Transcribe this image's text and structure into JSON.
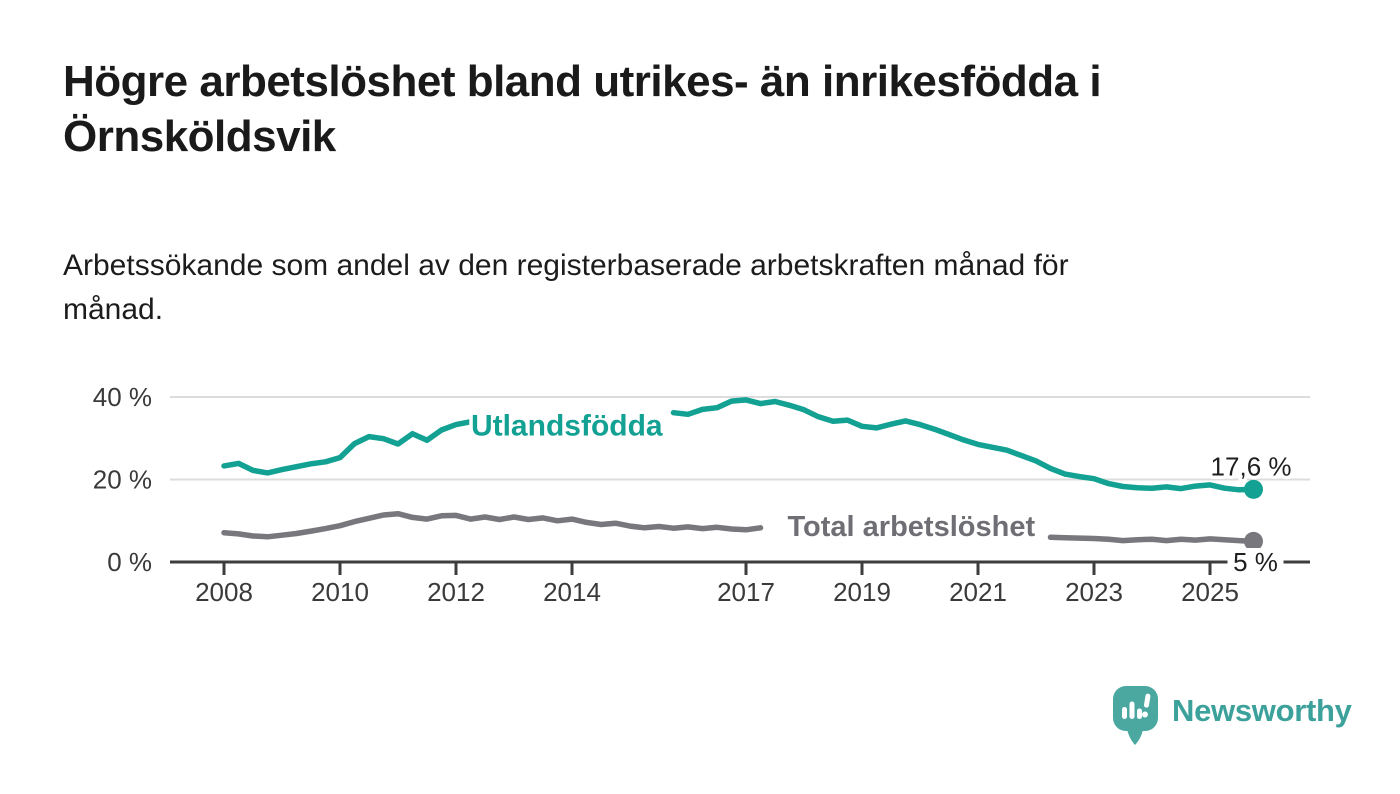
{
  "title": "Högre arbetslöshet bland utrikes- än inrikesfödda i\nÖrnsköldsvik",
  "subtitle": "Arbetssökande som andel av den registerbaserade arbetskraften månad för\nmånad.",
  "branding": {
    "name": "Newsworthy",
    "icon": "bar-chart-speech-bubble-icon",
    "wordmark_color": "#3BA19A",
    "icon_color": "#4BA8A1"
  },
  "colors": {
    "series_foreign_born": "#12A192",
    "series_total": "#77777D",
    "series_total_label": "#6E6E74",
    "axis": "#3D3D3D",
    "gridline": "#DCDCDC",
    "annotation_text": "#1F1F1F"
  },
  "chart_data": {
    "type": "line",
    "title": "Högre arbetslöshet bland utrikes- än inrikesfödda i Örnsköldsvik",
    "subtitle": "Arbetssökande som andel av den registerbaserade arbetskraften månad för månad.",
    "x_unit": "year (monthly share shown, sampled quarterly)",
    "xlim": [
      2007.9,
      2026.8
    ],
    "ylim": [
      0,
      42
    ],
    "grid": "horizontal",
    "legend": "inline-labels",
    "x_ticks": [
      2008,
      2010,
      2012,
      2014,
      2017,
      2019,
      2021,
      2023,
      2025
    ],
    "y_ticks": [
      {
        "value": 0,
        "label": "0 %"
      },
      {
        "value": 20,
        "label": "20 %"
      },
      {
        "value": 40,
        "label": "40 %"
      }
    ],
    "series": [
      {
        "name": "Utlandsfödda",
        "color": "#12A192",
        "x_start": 2008,
        "x_step": 0.25,
        "values": [
          23.3,
          23.9,
          22.2,
          21.6,
          22.4,
          23.1,
          23.8,
          24.3,
          25.3,
          28.7,
          30.4,
          29.9,
          28.6,
          31.1,
          29.5,
          32.0,
          33.3,
          34.0,
          null,
          null,
          null,
          null,
          null,
          null,
          null,
          null,
          null,
          null,
          null,
          null,
          null,
          36.2,
          35.8,
          37.0,
          37.4,
          39.0,
          39.3,
          38.4,
          38.9,
          38.0,
          36.9,
          35.2,
          34.1,
          34.4,
          32.9,
          32.5,
          33.4,
          34.2,
          33.3,
          32.2,
          30.9,
          29.6,
          28.5,
          27.8,
          27.1,
          25.8,
          24.5,
          22.7,
          21.3,
          20.7,
          20.2,
          19.0,
          18.3,
          18.0,
          17.9,
          18.2,
          17.8,
          18.4,
          18.7,
          17.9,
          17.5,
          17.6
        ],
        "inline_label": {
          "text": "Utlandsfödda",
          "x": 2013.91,
          "y": 33.0,
          "font_size": 30
        },
        "end_dot": true,
        "end_label": {
          "text": "17,6 %",
          "value": 17.6,
          "placement": "above-right"
        }
      },
      {
        "name": "Total arbetslöshet",
        "color": "#77777D",
        "label_color": "#6E6E74",
        "x_start": 2008,
        "x_step": 0.25,
        "values": [
          7.1,
          6.8,
          6.3,
          6.1,
          6.5,
          6.9,
          7.5,
          8.1,
          8.8,
          9.8,
          10.6,
          11.4,
          11.7,
          10.8,
          10.4,
          11.2,
          11.3,
          10.4,
          10.9,
          10.3,
          10.9,
          10.3,
          10.7,
          10.0,
          10.4,
          9.6,
          9.1,
          9.4,
          8.7,
          8.3,
          8.6,
          8.2,
          8.5,
          8.1,
          8.4,
          8.0,
          7.8,
          8.3,
          null,
          null,
          null,
          null,
          null,
          null,
          null,
          null,
          null,
          null,
          null,
          null,
          null,
          null,
          null,
          null,
          null,
          null,
          null,
          6.0,
          5.9,
          5.8,
          5.7,
          5.5,
          5.2,
          5.4,
          5.5,
          5.2,
          5.5,
          5.3,
          5.6,
          5.4,
          5.2,
          5.0
        ],
        "inline_label": {
          "text": "Total arbetslöshet",
          "x": 2019.85,
          "y": 8.5,
          "font_size": 29
        },
        "end_dot": true,
        "end_label": {
          "text": "5 %",
          "value": 5.0,
          "placement": "on-axis"
        }
      }
    ]
  }
}
